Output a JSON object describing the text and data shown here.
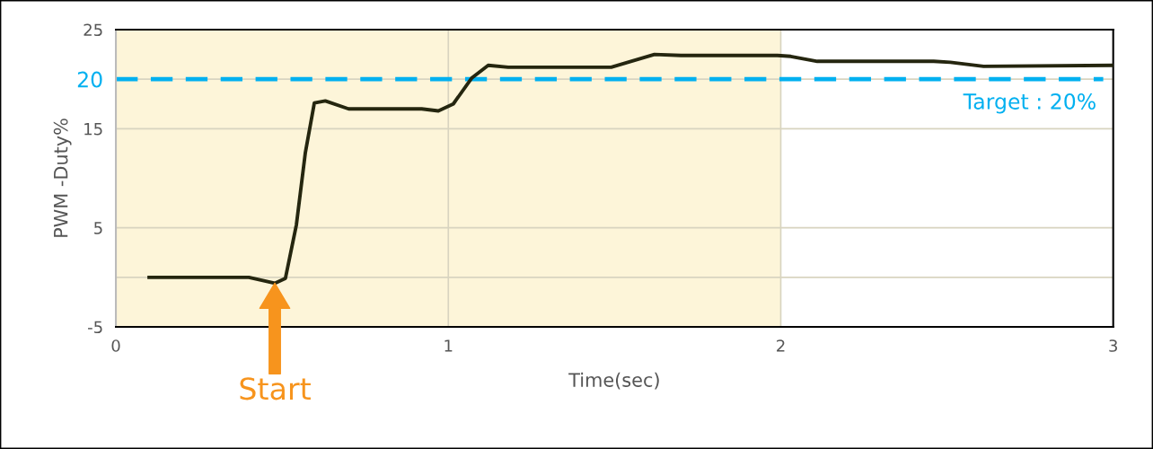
{
  "chart_data": {
    "type": "line",
    "xlabel": "Time(sec)",
    "ylabel": "PWM -Duty%",
    "xlim": [
      0,
      3
    ],
    "xticks": [
      0,
      1,
      2,
      3
    ],
    "ylim": [
      -5,
      25
    ],
    "yticks": [
      -5,
      {
        "value": 0,
        "label": null
      },
      5,
      15,
      20,
      25
    ],
    "grid": true,
    "marker": "none",
    "line_style": "solid",
    "legend": false,
    "series": [
      {
        "color": "#25260f",
        "x": [
          0.1,
          0.4,
          0.478,
          0.51,
          0.543,
          0.57,
          0.597,
          0.63,
          0.7,
          0.92,
          0.97,
          1.015,
          1.07,
          1.12,
          1.18,
          1.49,
          1.54,
          1.62,
          1.7,
          1.99,
          2.03,
          2.11,
          2.46,
          2.51,
          2.61,
          3.0
        ],
        "values": [
          0,
          0,
          -0.6,
          -0.1,
          5.3,
          12.6,
          17.6,
          17.8,
          17.0,
          17.0,
          16.8,
          17.5,
          20.1,
          21.4,
          21.2,
          21.2,
          21.7,
          22.5,
          22.4,
          22.4,
          22.3,
          21.8,
          21.8,
          21.7,
          21.3,
          21.4
        ]
      }
    ],
    "ref_lines": [
      {
        "axis": "y",
        "value": 20,
        "label": "Target : 20%",
        "color": "#00b0f0",
        "line_style": "dashed"
      }
    ],
    "bands": [
      {
        "axis": "x",
        "from": 0,
        "to": 2,
        "color": "#fdf5d9"
      }
    ],
    "annotations": [
      "Start"
    ]
  }
}
